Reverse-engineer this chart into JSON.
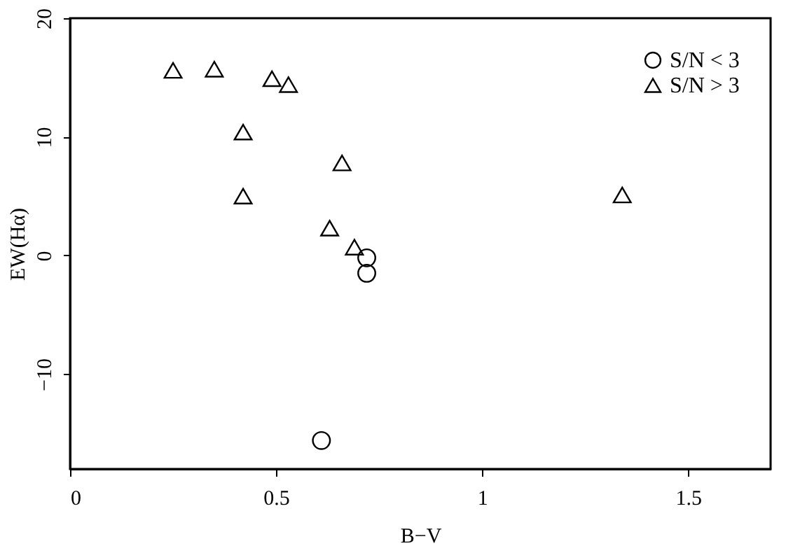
{
  "chart_data": {
    "type": "scatter",
    "xlabel": "B−V",
    "ylabel": "EW(Hα)",
    "xlim": [
      0,
      1.7
    ],
    "ylim": [
      -18,
      20
    ],
    "xticks": [
      0,
      0.5,
      1,
      1.5
    ],
    "yticks": [
      -10,
      0,
      10,
      20
    ],
    "grid": false,
    "legend": "top right",
    "series": [
      {
        "name": "S/N < 3",
        "color": "#000000",
        "marker": "circle",
        "x": [
          0.72,
          0.72,
          0.61
        ],
        "values": [
          -0.2,
          -1.5,
          -15.6
        ]
      },
      {
        "name": "S/N > 3",
        "color": "#000000",
        "marker": "triangle",
        "x": [
          0.25,
          0.35,
          0.49,
          0.53,
          0.42,
          0.66,
          0.42,
          1.34,
          0.63,
          0.69
        ],
        "values": [
          15.6,
          15.7,
          14.9,
          14.4,
          10.4,
          7.8,
          5.0,
          5.1,
          2.3,
          0.7
        ]
      }
    ]
  }
}
